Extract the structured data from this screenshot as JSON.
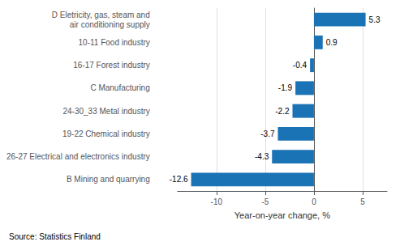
{
  "chart_data": {
    "type": "bar",
    "orientation": "horizontal",
    "categories": [
      "B Mining and quarrying",
      "26-27 Electrical and electronics industry",
      "19-22 Chemical industry",
      "24-30_33 Metal industry",
      "C Manufacturing",
      "16-17 Forest industry",
      "10-11 Food industry",
      "D Eletricity, gas, steam and\nair conditioning supply"
    ],
    "values": [
      -12.6,
      -4.3,
      -3.7,
      -2.2,
      -1.9,
      -0.4,
      0.9,
      5.3
    ],
    "color": "#1a73b5",
    "xlim": [
      -14,
      7.5
    ],
    "xticks": [
      -10,
      -5,
      0,
      5
    ],
    "xlabel": "Year-on-year change, %",
    "annotation": "Source: Statistics Finland",
    "data_labels": true,
    "grid": true
  }
}
